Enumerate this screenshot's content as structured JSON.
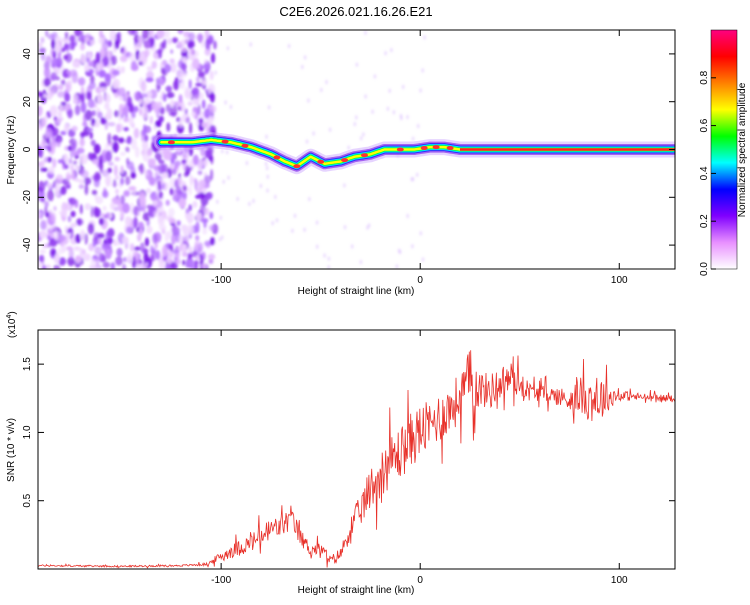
{
  "title": "C2E6.2026.021.16.26.E21",
  "chart_data": [
    {
      "type": "heatmap",
      "title": "C2E6.2026.021.16.26.E21",
      "xlabel": "Height of straight line (km)",
      "ylabel": "Frequency (Hz)",
      "xlim": [
        -192,
        128
      ],
      "ylim": [
        -50,
        50
      ],
      "x_ticks": [
        {
          "value": -100,
          "label": "-100"
        },
        {
          "value": 0,
          "label": "0"
        },
        {
          "value": 100,
          "label": "100"
        }
      ],
      "y_ticks": [
        {
          "value": -40,
          "label": "-40"
        },
        {
          "value": -20,
          "label": "-20"
        },
        {
          "value": 0,
          "label": "0"
        },
        {
          "value": 20,
          "label": "20"
        },
        {
          "value": 40,
          "label": "40"
        }
      ],
      "noise_region_x": [
        -192,
        -103
      ],
      "ridge": {
        "x": [
          -130,
          -115,
          -105,
          -95,
          -85,
          -75,
          -68,
          -62,
          -55,
          -48,
          -40,
          -33,
          -25,
          -18,
          -10,
          -3,
          5,
          12,
          20,
          40,
          80,
          128
        ],
        "y": [
          3,
          3,
          4,
          3,
          1,
          -2,
          -5,
          -7,
          -3,
          -6,
          -5,
          -3,
          -2,
          0,
          0,
          0,
          1,
          1,
          0,
          0,
          0,
          0
        ]
      },
      "colorbar": {
        "label": "Normalized spectral amplitude",
        "range": [
          0,
          1
        ],
        "ticks": [
          {
            "value": 0,
            "label": "0.0"
          },
          {
            "value": 0.2,
            "label": "0.2"
          },
          {
            "value": 0.4,
            "label": "0.4"
          },
          {
            "value": 0.6,
            "label": "0.6"
          },
          {
            "value": 0.8,
            "label": "0.8"
          }
        ],
        "colors": [
          "#ffffff",
          "#e890ff",
          "#8000ff",
          "#0000ff",
          "#00ffff",
          "#00ff00",
          "#ffff00",
          "#ff8000",
          "#ff0000",
          "#ff0080"
        ]
      }
    },
    {
      "type": "line",
      "xlabel": "Height of straight line (km)",
      "ylabel": "SNR (10 * v/v)",
      "yscale_label_prefix": "(x10",
      "yscale_label_exp": "4",
      "yscale_label_suffix": ")",
      "xlim": [
        -192,
        128
      ],
      "ylim": [
        0,
        17500
      ],
      "color": "#e8312a",
      "x_ticks": [
        {
          "value": -100,
          "label": "-100"
        },
        {
          "value": 0,
          "label": "0"
        },
        {
          "value": 100,
          "label": "100"
        }
      ],
      "y_ticks": [
        {
          "value": 5000,
          "label": "0.5"
        },
        {
          "value": 10000,
          "label": "1.0"
        },
        {
          "value": 15000,
          "label": "1.5"
        }
      ],
      "series": [
        {
          "name": "SNR",
          "x": [
            -192,
            -150,
            -120,
            -107,
            -103,
            -95,
            -85,
            -75,
            -70,
            -65,
            -60,
            -55,
            -50,
            -45,
            -40,
            -35,
            -30,
            -25,
            -20,
            -15,
            -10,
            -5,
            0,
            5,
            10,
            15,
            20,
            25,
            30,
            35,
            40,
            45,
            50,
            55,
            60,
            65,
            70,
            75,
            80,
            85,
            90,
            95,
            100,
            110,
            120,
            128
          ],
          "y": [
            250,
            200,
            250,
            350,
            700,
            1300,
            1900,
            2900,
            3100,
            3700,
            2300,
            1400,
            1500,
            600,
            1100,
            3000,
            4300,
            5900,
            6900,
            7900,
            8500,
            9400,
            10100,
            10500,
            11200,
            11700,
            12600,
            13800,
            13200,
            13000,
            13600,
            14000,
            13600,
            13000,
            12900,
            12800,
            12600,
            12400,
            12700,
            12500,
            12500,
            12600,
            12700,
            12600,
            12500,
            12500
          ],
          "noise": [
            60,
            60,
            60,
            100,
            250,
            500,
            700,
            900,
            800,
            1000,
            600,
            500,
            450,
            350,
            500,
            900,
            1200,
            1600,
            1700,
            1900,
            2000,
            2000,
            2000,
            1800,
            1800,
            1800,
            1900,
            2400,
            1400,
            1300,
            1200,
            1300,
            900,
            700,
            600,
            600,
            700,
            900,
            1300,
            1700,
            1900,
            900,
            400,
            300,
            250,
            250
          ]
        }
      ]
    }
  ]
}
